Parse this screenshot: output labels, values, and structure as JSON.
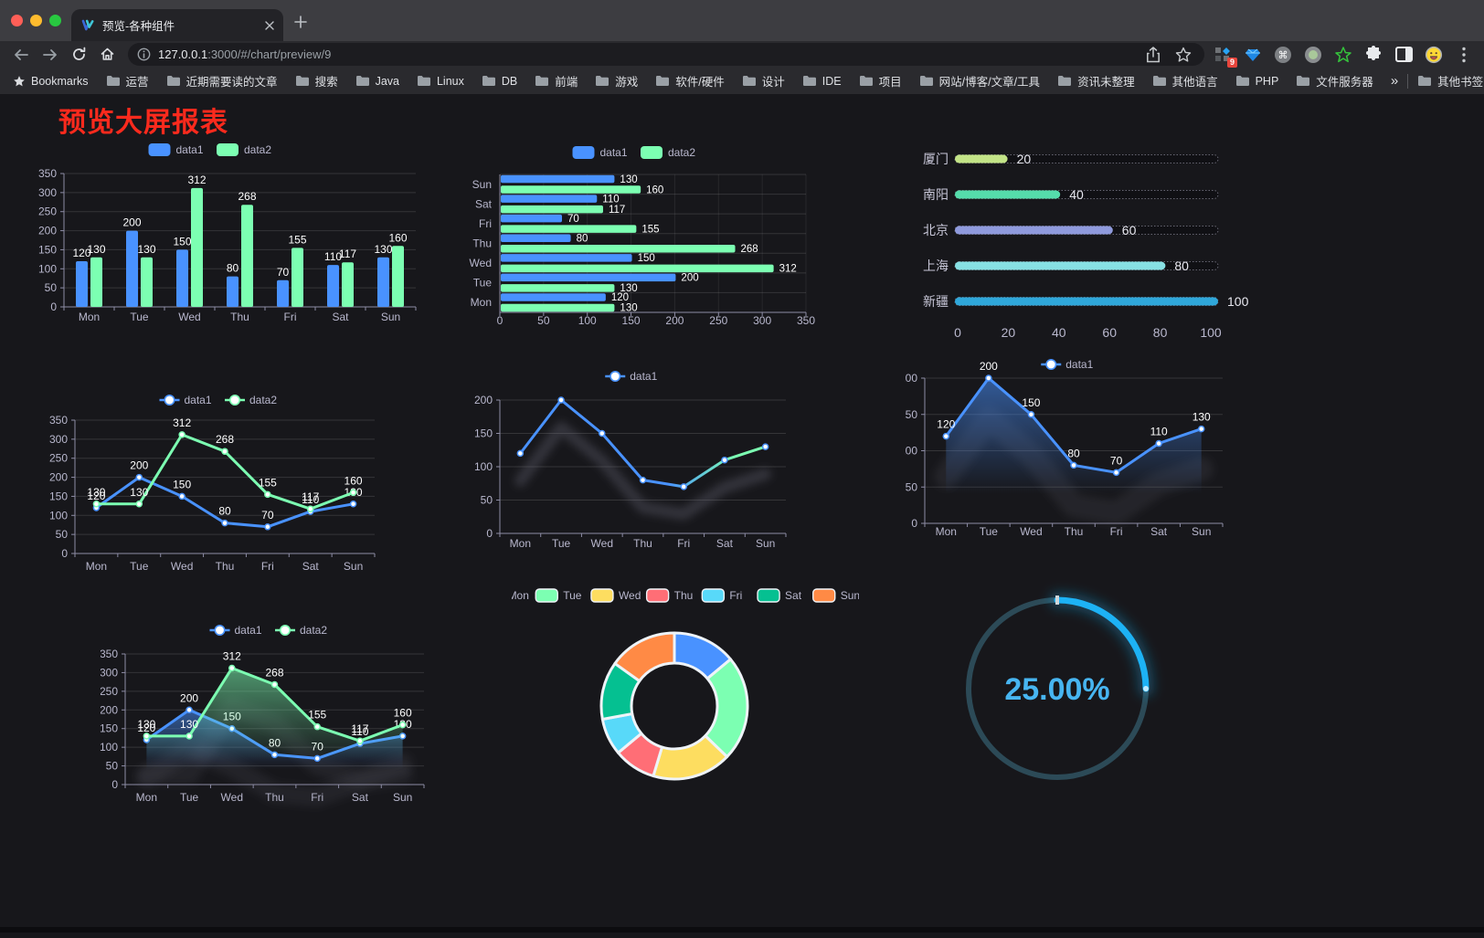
{
  "browser": {
    "traffic_lights": [
      "#ff5f57",
      "#febc2e",
      "#28c840"
    ],
    "tab": {
      "title": "预览-各种组件"
    },
    "url": {
      "host": "127.0.0.1",
      "path": ":3000/#/chart/preview/9"
    },
    "extension_badge": "9",
    "bookmarks_bar": {
      "first_item": "Bookmarks",
      "folders": [
        "运营",
        "近期需要读的文章",
        "搜索",
        "Java",
        "Linux",
        "DB",
        "前端",
        "游戏",
        "软件/硬件",
        "设计",
        "IDE",
        "项目",
        "网站/博客/文章/工具",
        "资讯未整理",
        "其他语言",
        "PHP",
        "文件服务器"
      ],
      "overflow": "»",
      "other_bookmarks": "其他书签"
    }
  },
  "page": {
    "title": "预览大屏报表"
  },
  "theme": {
    "axis_text": "#B9B8CE",
    "grid_line": "rgba(255,255,255,0.13)",
    "axis_line": "#8d8ca5",
    "value_label": "#ffffff",
    "data1_color": "#4992ff",
    "data2_color": "#7cffb2"
  },
  "chart_data": [
    {
      "id": "bar-grouped",
      "type": "bar",
      "legend": [
        "data1",
        "data2"
      ],
      "categories": [
        "Mon",
        "Tue",
        "Wed",
        "Thu",
        "Fri",
        "Sat",
        "Sun"
      ],
      "series": [
        {
          "name": "data1",
          "color": "#4992ff",
          "values": [
            120,
            200,
            150,
            80,
            70,
            110,
            130
          ]
        },
        {
          "name": "data2",
          "color": "#7cffb2",
          "values": [
            130,
            130,
            312,
            268,
            155,
            117,
            160
          ]
        }
      ],
      "ylim": [
        0,
        350
      ],
      "ystep": 50,
      "grid": true,
      "legend_position": "top"
    },
    {
      "id": "bar-horizontal",
      "type": "bar",
      "orientation": "horizontal",
      "legend": [
        "data1",
        "data2"
      ],
      "categories": [
        "Mon",
        "Tue",
        "Wed",
        "Thu",
        "Fri",
        "Sat",
        "Sun"
      ],
      "categories_displayed_top_to_bottom": [
        "Sun",
        "Sat",
        "Fri",
        "Thu",
        "Wed",
        "Tue",
        "Mon"
      ],
      "series": [
        {
          "name": "data1",
          "color": "#4992ff",
          "values": [
            120,
            200,
            150,
            80,
            70,
            110,
            130
          ]
        },
        {
          "name": "data2",
          "color": "#7cffb2",
          "values": [
            130,
            130,
            312,
            268,
            155,
            117,
            160
          ]
        }
      ],
      "xlim": [
        0,
        350
      ],
      "xstep": 50,
      "grid": true,
      "legend_position": "top"
    },
    {
      "id": "progress-bars",
      "type": "bar",
      "subtype": "progress-pills",
      "items": [
        {
          "label": "厦门",
          "value": 20,
          "color": "#c3e487"
        },
        {
          "label": "南阳",
          "value": 40,
          "color": "#55dcab"
        },
        {
          "label": "北京",
          "value": 60,
          "color": "#8f9add"
        },
        {
          "label": "上海",
          "value": 80,
          "color": "#87e0e3"
        },
        {
          "label": "新疆",
          "value": 100,
          "color": "#2fa7da"
        }
      ],
      "xticks": [
        0,
        20,
        40,
        60,
        80,
        100
      ],
      "xlim": [
        0,
        100
      ]
    },
    {
      "id": "line-two",
      "type": "line",
      "legend": [
        "data1",
        "data2"
      ],
      "categories": [
        "Mon",
        "Tue",
        "Wed",
        "Thu",
        "Fri",
        "Sat",
        "Sun"
      ],
      "series": [
        {
          "name": "data1",
          "color": "#4992ff",
          "values": [
            120,
            200,
            150,
            80,
            70,
            110,
            130
          ]
        },
        {
          "name": "data2",
          "color": "#7cffb2",
          "values": [
            130,
            130,
            312,
            268,
            155,
            117,
            160
          ]
        }
      ],
      "ylim": [
        0,
        350
      ],
      "ystep": 50,
      "labels": true,
      "legend_position": "top"
    },
    {
      "id": "line-gradient",
      "type": "line",
      "legend": [
        "data1"
      ],
      "categories": [
        "Mon",
        "Tue",
        "Wed",
        "Thu",
        "Fri",
        "Sat",
        "Sun"
      ],
      "series": [
        {
          "name": "data1",
          "gradient": [
            "#4992ff",
            "#7cffb2"
          ],
          "values": [
            120,
            200,
            150,
            80,
            70,
            110,
            130
          ]
        }
      ],
      "ylim": [
        0,
        200
      ],
      "ystep": 50,
      "labels": false,
      "shadow": true,
      "legend_position": "top"
    },
    {
      "id": "line-area",
      "type": "area",
      "legend": [
        "data1"
      ],
      "categories": [
        "Mon",
        "Tue",
        "Wed",
        "Thu",
        "Fri",
        "Sat",
        "Sun"
      ],
      "series": [
        {
          "name": "data1",
          "color": "#4992ff",
          "values": [
            120,
            200,
            150,
            80,
            70,
            110,
            130
          ]
        }
      ],
      "ylim": [
        0,
        200
      ],
      "ystep": 50,
      "labels": true,
      "shadow": true,
      "legend_position": "top"
    },
    {
      "id": "line-two-area",
      "type": "area",
      "legend": [
        "data1",
        "data2"
      ],
      "categories": [
        "Mon",
        "Tue",
        "Wed",
        "Thu",
        "Fri",
        "Sat",
        "Sun"
      ],
      "series": [
        {
          "name": "data1",
          "color": "#4992ff",
          "values": [
            120,
            200,
            150,
            80,
            70,
            110,
            130
          ]
        },
        {
          "name": "data2",
          "color": "#7cffb2",
          "values": [
            130,
            130,
            312,
            268,
            155,
            117,
            160
          ]
        }
      ],
      "ylim": [
        0,
        350
      ],
      "ystep": 50,
      "labels": true,
      "shadow": true,
      "legend_position": "top"
    },
    {
      "id": "donut",
      "type": "pie",
      "inner_radius_pct": 59,
      "categories": [
        "Mon",
        "Tue",
        "Wed",
        "Thu",
        "Fri",
        "Sat",
        "Sun"
      ],
      "values": [
        120,
        200,
        150,
        80,
        70,
        110,
        130
      ],
      "colors": [
        "#4992ff",
        "#7cffb2",
        "#fddd60",
        "#ff6e76",
        "#58d9f9",
        "#05c091",
        "#ff8a45"
      ],
      "legend_position": "top"
    },
    {
      "id": "gauge",
      "type": "gauge",
      "percent": 25,
      "display": "25.00%",
      "color": "#1db2f5",
      "track_color": "#2c4a57",
      "text_color": "#47b5f1"
    }
  ]
}
